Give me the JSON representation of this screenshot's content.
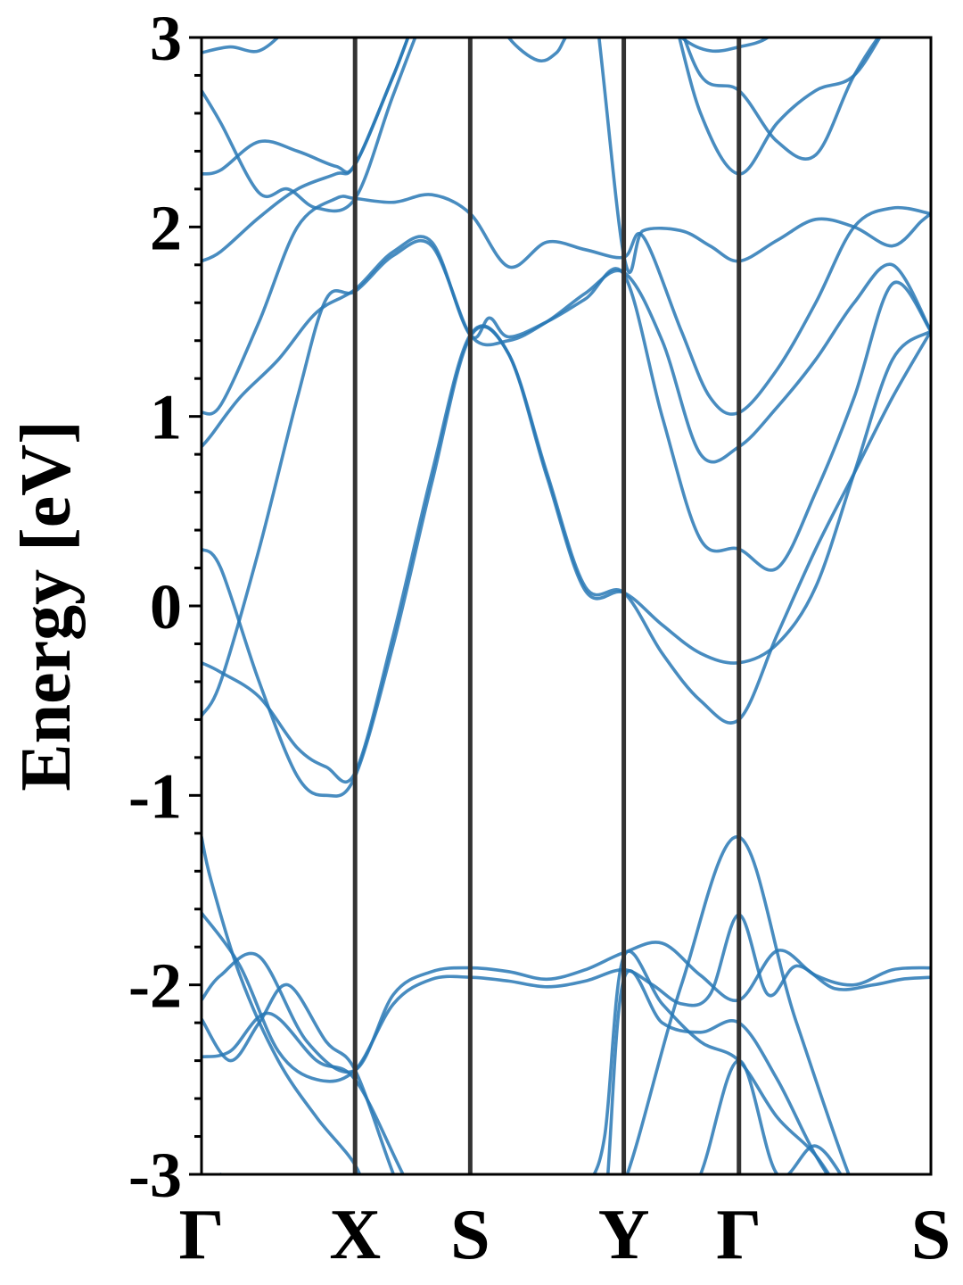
{
  "chart_data": {
    "type": "line",
    "title": "",
    "xlabel": "",
    "ylabel": "Energy [eV]",
    "ylim": [
      -3,
      3
    ],
    "y_ticks": [
      "-3",
      "-2",
      "-1",
      "0",
      "1",
      "2",
      "3"
    ],
    "y_minor_step": 0.2,
    "k_labels": [
      "Γ",
      "X",
      "S",
      "Y",
      "Γ",
      "S"
    ],
    "k_positions": [
      0,
      0.8,
      1.4,
      2.2,
      2.8,
      3.8
    ],
    "grid": false,
    "colors": {
      "band": "#2878b5",
      "kpath_line": "#333333",
      "axis": "#000000"
    },
    "series": [
      {
        "x": [
          0,
          0.05,
          0.2,
          0.4,
          0.6,
          0.8,
          0.9,
          1.1,
          1.3,
          1.4,
          1.65,
          2.0,
          2.2,
          2.5,
          2.8,
          3.1,
          3.5,
          3.8
        ],
        "y": [
          -1.22,
          -1.45,
          -1.95,
          -2.4,
          -2.7,
          -2.95,
          -3.2,
          -3.4,
          -3.4,
          -3.4,
          -3.4,
          -3.3,
          -3.05,
          -2.0,
          -1.22,
          -2.2,
          -3.3,
          -3.5
        ]
      },
      {
        "x": [
          0,
          0.2,
          0.4,
          0.6,
          0.8,
          1.0,
          1.2,
          1.4,
          1.6,
          1.8,
          2.0,
          2.2,
          2.35,
          2.5,
          2.65,
          2.8,
          2.95,
          3.1,
          3.3,
          3.5,
          3.65,
          3.8
        ],
        "y": [
          -1.62,
          -1.9,
          -2.35,
          -2.5,
          -2.45,
          -2.1,
          -1.97,
          -1.96,
          -1.98,
          -2.01,
          -1.98,
          -1.92,
          -2.0,
          -2.1,
          -2.05,
          -1.63,
          -2.05,
          -1.9,
          -2.02,
          -2.0,
          -1.97,
          -1.96
        ]
      },
      {
        "x": [
          0,
          0.1,
          0.3,
          0.55,
          0.8,
          1.0,
          1.2,
          1.4,
          1.6,
          1.8,
          2.0,
          2.2,
          2.4,
          2.6,
          2.8,
          3.0,
          3.2,
          3.4,
          3.6,
          3.8
        ],
        "y": [
          -2.08,
          -1.95,
          -1.85,
          -2.3,
          -2.45,
          -2.05,
          -1.93,
          -1.91,
          -1.93,
          -1.97,
          -1.92,
          -1.83,
          -1.78,
          -1.95,
          -2.08,
          -1.82,
          -1.95,
          -2.0,
          -1.92,
          -1.91
        ]
      },
      {
        "x": [
          0,
          0.15,
          0.3,
          0.45,
          0.65,
          0.8,
          1.0,
          1.2,
          1.4,
          1.7,
          2.0,
          2.1,
          2.2,
          2.4,
          2.6,
          2.8,
          3.0,
          3.2,
          3.4,
          3.6,
          3.8
        ],
        "y": [
          -2.18,
          -2.4,
          -2.2,
          -2.0,
          -2.3,
          -2.45,
          -3.0,
          -3.5,
          -3.5,
          -3.5,
          -3.5,
          -3.2,
          -1.97,
          -2.2,
          -2.25,
          -2.2,
          -2.5,
          -2.9,
          -3.2,
          -3.4,
          -3.5
        ]
      },
      {
        "x": [
          0,
          0.15,
          0.35,
          0.6,
          0.8,
          1.05,
          1.3,
          1.4,
          1.6,
          1.85,
          2.0,
          2.1,
          2.2,
          2.4,
          2.6,
          2.8,
          3.0,
          3.2,
          3.4,
          3.6,
          3.8
        ],
        "y": [
          -2.38,
          -2.35,
          -2.15,
          -2.4,
          -2.5,
          -3.0,
          -3.5,
          -3.5,
          -3.5,
          -3.5,
          -3.1,
          -2.8,
          -1.85,
          -2.1,
          -2.3,
          -2.4,
          -2.7,
          -2.9,
          -3.2,
          -3.4,
          -3.5
        ]
      },
      {
        "x": [
          0.1,
          0.25,
          0.4,
          0.6,
          0.8,
          1.0,
          1.4,
          1.8,
          2.2,
          2.4,
          2.6,
          2.8,
          3.0,
          3.2,
          3.4,
          3.6,
          3.8
        ],
        "y": [
          -3.0,
          -3.1,
          -3.3,
          -3.4,
          -3.5,
          -3.5,
          -3.5,
          -3.5,
          -3.5,
          -3.4,
          -3.0,
          -2.4,
          -3.0,
          -2.85,
          -3.1,
          -3.3,
          -3.5
        ]
      },
      {
        "x": [
          0,
          0.1,
          0.3,
          0.5,
          0.65,
          0.8,
          1.0,
          1.2,
          1.4,
          1.6,
          1.8,
          2.0,
          2.2,
          2.4,
          2.6,
          2.8,
          3.0,
          3.2,
          3.4,
          3.6,
          3.8
        ],
        "y": [
          0.3,
          0.2,
          -0.4,
          -0.9,
          -1.0,
          -0.9,
          -0.2,
          0.65,
          1.42,
          1.33,
          0.7,
          0.1,
          0.07,
          -0.25,
          -0.5,
          -0.6,
          -0.15,
          0.3,
          0.7,
          1.1,
          1.45
        ]
      },
      {
        "x": [
          0,
          0.1,
          0.3,
          0.5,
          0.65,
          0.8,
          1.0,
          1.2,
          1.4,
          1.6,
          1.8,
          2.0,
          2.2,
          2.4,
          2.6,
          2.8,
          3.0,
          3.2,
          3.4,
          3.6,
          3.8
        ],
        "y": [
          -0.3,
          -0.35,
          -0.48,
          -0.75,
          -0.85,
          -0.88,
          -0.15,
          0.7,
          1.43,
          1.33,
          0.68,
          0.08,
          0.07,
          -0.1,
          -0.25,
          -0.3,
          -0.2,
          0.1,
          0.7,
          1.3,
          1.45
        ]
      },
      {
        "x": [
          0,
          0.1,
          0.3,
          0.5,
          0.65,
          0.8,
          1.0,
          1.2,
          1.4,
          1.5,
          1.6,
          1.8,
          2.0,
          2.2,
          2.4,
          2.6,
          2.8,
          3.0,
          3.2,
          3.4,
          3.6,
          3.8
        ],
        "y": [
          -0.58,
          -0.4,
          0.3,
          1.1,
          1.62,
          1.66,
          1.85,
          1.9,
          1.43,
          1.52,
          1.42,
          1.5,
          1.62,
          1.75,
          1.0,
          0.35,
          0.3,
          0.2,
          0.6,
          1.1,
          1.7,
          1.45
        ]
      },
      {
        "x": [
          0,
          0.05,
          0.2,
          0.4,
          0.6,
          0.8,
          1.0,
          1.2,
          1.4,
          1.6,
          1.8,
          2.0,
          2.2,
          2.4,
          2.6,
          2.8,
          3.0,
          3.2,
          3.4,
          3.6,
          3.8
        ],
        "y": [
          0.84,
          0.9,
          1.1,
          1.3,
          1.55,
          1.67,
          1.87,
          1.92,
          1.43,
          1.4,
          1.5,
          1.65,
          1.76,
          1.4,
          0.8,
          0.84,
          1.05,
          1.3,
          1.6,
          1.8,
          1.45
        ]
      },
      {
        "x": [
          0,
          0.1,
          0.3,
          0.5,
          0.7,
          0.8,
          1.0,
          1.2,
          1.4,
          1.6,
          1.8,
          2.0,
          2.2,
          2.3,
          2.5,
          2.65,
          2.8,
          3.0,
          3.2,
          3.4,
          3.6,
          3.8
        ],
        "y": [
          1.02,
          1.06,
          1.5,
          2.0,
          2.15,
          2.15,
          2.13,
          2.17,
          2.07,
          1.79,
          1.92,
          1.88,
          1.84,
          1.95,
          1.45,
          1.1,
          1.02,
          1.25,
          1.6,
          2.0,
          2.1,
          2.07
        ]
      },
      {
        "x": [
          0,
          0.1,
          0.3,
          0.5,
          0.7,
          0.8,
          1.0,
          1.2,
          1.4,
          1.6,
          1.8,
          2.0,
          2.2,
          2.3,
          2.5,
          2.65,
          2.8,
          3.0,
          3.2,
          3.4,
          3.6,
          3.75,
          3.8
        ],
        "y": [
          1.82,
          1.87,
          2.05,
          2.2,
          2.28,
          2.33,
          2.8,
          3.3,
          3.5,
          3.5,
          3.5,
          3.5,
          1.85,
          1.98,
          1.98,
          1.9,
          1.82,
          1.93,
          2.04,
          2.0,
          1.9,
          2.03,
          2.07
        ]
      },
      {
        "x": [
          0,
          0.1,
          0.3,
          0.5,
          0.7,
          0.8,
          1.0,
          1.2,
          1.4,
          1.6,
          1.8,
          2.0,
          2.2,
          2.4,
          2.6,
          2.8,
          3.0,
          3.2,
          3.4,
          3.6,
          3.8
        ],
        "y": [
          2.28,
          2.3,
          2.45,
          2.4,
          2.32,
          2.33,
          2.8,
          3.3,
          3.5,
          3.5,
          3.5,
          3.5,
          3.5,
          3.3,
          2.6,
          2.28,
          2.55,
          2.72,
          2.8,
          3.1,
          3.3
        ]
      },
      {
        "x": [
          0,
          0.1,
          0.3,
          0.45,
          0.6,
          0.8,
          1.0,
          1.2,
          1.4,
          1.6,
          1.8,
          2.0,
          2.2,
          2.4,
          2.6,
          2.8,
          3.0,
          3.2,
          3.4,
          3.6,
          3.8
        ],
        "y": [
          2.72,
          2.55,
          2.18,
          2.2,
          2.1,
          2.15,
          2.7,
          3.2,
          3.5,
          3.5,
          3.5,
          3.5,
          3.5,
          3.3,
          2.8,
          2.72,
          2.45,
          2.38,
          2.8,
          3.1,
          3.3
        ]
      },
      {
        "x": [
          0,
          0.15,
          0.3,
          0.45,
          0.6,
          1.5,
          1.6,
          1.75,
          1.85,
          1.95,
          2.3,
          2.5,
          2.65,
          2.8,
          2.95,
          3.1,
          3.3
        ],
        "y": [
          2.92,
          2.95,
          2.93,
          3.05,
          3.2,
          3.2,
          3.0,
          2.88,
          2.92,
          3.05,
          3.2,
          3.0,
          2.93,
          2.95,
          3.0,
          3.15,
          3.3
        ]
      }
    ]
  }
}
